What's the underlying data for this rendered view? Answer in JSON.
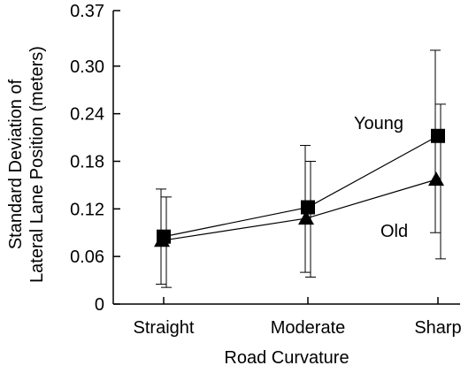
{
  "chart_data": {
    "type": "line",
    "title": "",
    "xlabel": "Road Curvature",
    "ylabel_lines": [
      "Standard Deviation of",
      "Lateral Lane Position (meters)"
    ],
    "categories": [
      "Straight",
      "Moderate",
      "Sharp"
    ],
    "ylim": [
      0,
      0.37
    ],
    "yticks": [
      0,
      0.06,
      0.12,
      0.18,
      0.24,
      0.3,
      0.37
    ],
    "ytick_labels": [
      "0",
      "0.06",
      "0.12",
      "0.18",
      "0.24",
      "0.30",
      "0.37"
    ],
    "grid": false,
    "series": [
      {
        "name": "Young",
        "marker": "square",
        "values": [
          0.085,
          0.122,
          0.212
        ],
        "err_low": [
          0.025,
          0.04,
          0.09
        ],
        "err_high": [
          0.145,
          0.2,
          0.32
        ]
      },
      {
        "name": "Old",
        "marker": "triangle",
        "values": [
          0.08,
          0.108,
          0.157
        ],
        "err_low": [
          0.021,
          0.034,
          0.057
        ],
        "err_high": [
          0.135,
          0.18,
          0.252
        ]
      }
    ],
    "color": "#000000"
  }
}
